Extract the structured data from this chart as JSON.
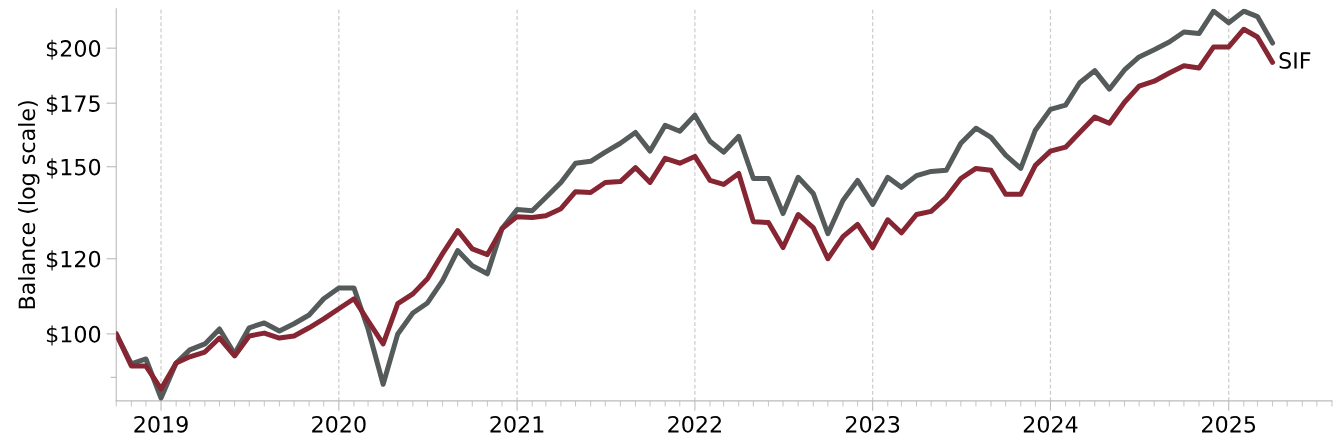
{
  "chart_data": {
    "type": "line",
    "ylabel": "Balance (log scale)",
    "log": "y",
    "x": [
      "2018-10",
      "2018-11",
      "2018-12",
      "2019-01",
      "2019-02",
      "2019-03",
      "2019-04",
      "2019-05",
      "2019-06",
      "2019-07",
      "2019-08",
      "2019-09",
      "2019-10",
      "2019-11",
      "2019-12",
      "2020-01",
      "2020-02",
      "2020-03",
      "2020-04",
      "2020-05",
      "2020-06",
      "2020-07",
      "2020-08",
      "2020-09",
      "2020-10",
      "2020-11",
      "2020-12",
      "2021-01",
      "2021-02",
      "2021-03",
      "2021-04",
      "2021-05",
      "2021-06",
      "2021-07",
      "2021-08",
      "2021-09",
      "2021-10",
      "2021-11",
      "2021-12",
      "2022-01",
      "2022-02",
      "2022-03",
      "2022-04",
      "2022-05",
      "2022-06",
      "2022-07",
      "2022-08",
      "2022-09",
      "2022-10",
      "2022-11",
      "2022-12",
      "2023-01",
      "2023-02",
      "2023-03",
      "2023-04",
      "2023-05",
      "2023-06",
      "2023-07",
      "2023-08",
      "2023-09",
      "2023-10",
      "2023-11",
      "2023-12",
      "2024-01",
      "2024-02",
      "2024-03",
      "2024-04",
      "2024-05",
      "2024-06",
      "2024-07",
      "2024-08",
      "2024-09",
      "2024-10",
      "2024-11",
      "2024-12",
      "2025-01",
      "2025-02",
      "2025-03",
      "2025-04"
    ],
    "series": [
      {
        "color": "#555a5a",
        "values": [
          100,
          93.0,
          94.1,
          85.6,
          93.2,
          96.2,
          97.6,
          101.2,
          95.3,
          101.5,
          102.7,
          100.7,
          102.5,
          104.7,
          108.9,
          111.8,
          111.8,
          101.2,
          88.5,
          100,
          105.2,
          107.8,
          113.8,
          122.4,
          118.0,
          115.7,
          129.1,
          135.2,
          134.8,
          139.2,
          144.4,
          151.3,
          152.0,
          155.4,
          158.8,
          163.0,
          155.8,
          165.9,
          163.5,
          170.0,
          159.6,
          155.4,
          161.5,
          145.8,
          145.8,
          133.9,
          146.2,
          140.6,
          127.5,
          138.2,
          145.1,
          136.9,
          146.2,
          142.7,
          146.8,
          148.3,
          148.7,
          158.8,
          164.7,
          161.1,
          154.3,
          149.4,
          163.9,
          172.4,
          174.2,
          183.9,
          189.4,
          181.1,
          189.7,
          195.8,
          199.2,
          203.0,
          208.0,
          207.2,
          218.8,
          212.7,
          218.8,
          215.9,
          202.5
        ]
      },
      {
        "name": "SIF",
        "color": "#862633",
        "values": [
          100,
          92.5,
          92.5,
          87.5,
          93.2,
          94.6,
          95.7,
          99.0,
          94.8,
          99.5,
          100.2,
          99.0,
          99.5,
          101.5,
          103.7,
          106.3,
          108.9,
          103.2,
          97.6,
          107.6,
          110.2,
          114.3,
          121.5,
          128.5,
          122.9,
          121.2,
          129.1,
          132.9,
          132.6,
          133.2,
          135.5,
          141.2,
          140.9,
          144.4,
          144.7,
          149.7,
          144.4,
          153.1,
          151.3,
          153.8,
          145.1,
          143.7,
          147.6,
          131.3,
          131.0,
          123.3,
          133.6,
          129.4,
          120.0,
          126.6,
          130.4,
          123.3,
          131.9,
          127.8,
          133.6,
          134.6,
          139.2,
          145.8,
          149.4,
          148.7,
          140.3,
          140.3,
          150.5,
          155.8,
          157.3,
          163.0,
          169.2,
          166.7,
          175.4,
          182.4,
          184.6,
          188.3,
          191.6,
          190.6,
          200.6,
          200.6,
          209.4,
          205.5,
          193.2
        ]
      }
    ],
    "xlim": [
      "2018-10",
      "2025-08"
    ],
    "xticks": [
      {
        "value": "2019-01",
        "label": "2019"
      },
      {
        "value": "2020-01",
        "label": "2020"
      },
      {
        "value": "2021-01",
        "label": "2021"
      },
      {
        "value": "2022-01",
        "label": "2022"
      },
      {
        "value": "2023-01",
        "label": "2023"
      },
      {
        "value": "2024-01",
        "label": "2024"
      },
      {
        "value": "2025-01",
        "label": "2025"
      }
    ],
    "ylim": [
      85,
      220
    ],
    "yticks": [
      {
        "value": 90,
        "label": null
      },
      {
        "value": 100,
        "label": "$100"
      },
      {
        "value": 120,
        "label": "$120"
      },
      {
        "value": 150,
        "label": "$150"
      },
      {
        "value": 175,
        "label": "$175"
      },
      {
        "value": 200,
        "label": "$200"
      }
    ],
    "grid": "x",
    "legend": false,
    "marker": "none",
    "line_style": "solid"
  }
}
